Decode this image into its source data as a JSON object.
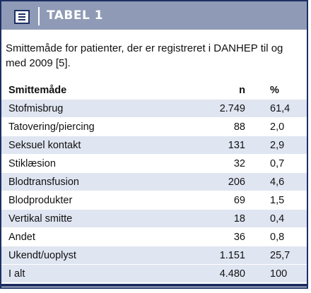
{
  "header": {
    "title": "TABEL 1",
    "icon": "document-icon"
  },
  "caption": "Smittemåde for patienter, der er registreret i DANHEP til og med 2009 [5].",
  "table": {
    "columns": [
      "Smittemåde",
      "n",
      "%"
    ],
    "rows": [
      {
        "label": "Stofmisbrug",
        "n": "2.749",
        "pct": "61,4"
      },
      {
        "label": "Tatovering/piercing",
        "n": "88",
        "pct": "2,0"
      },
      {
        "label": "Seksuel kontakt",
        "n": "131",
        "pct": "2,9"
      },
      {
        "label": "Stiklæsion",
        "n": "32",
        "pct": "0,7"
      },
      {
        "label": "Blodtransfusion",
        "n": "206",
        "pct": "4,6"
      },
      {
        "label": "Blodprodukter",
        "n": "69",
        "pct": "1,5"
      },
      {
        "label": "Vertikal smitte",
        "n": "18",
        "pct": "0,4"
      },
      {
        "label": "Andet",
        "n": "36",
        "pct": "0,8"
      },
      {
        "label": "Ukendt/uoplyst",
        "n": "1.151",
        "pct": "25,7"
      }
    ],
    "total": {
      "label": "I alt",
      "n": "4.480",
      "pct": "100"
    }
  },
  "colors": {
    "header_bg": "#8f9bb6",
    "row_alt": "#dfe5f1",
    "border": "#1d2f63"
  }
}
